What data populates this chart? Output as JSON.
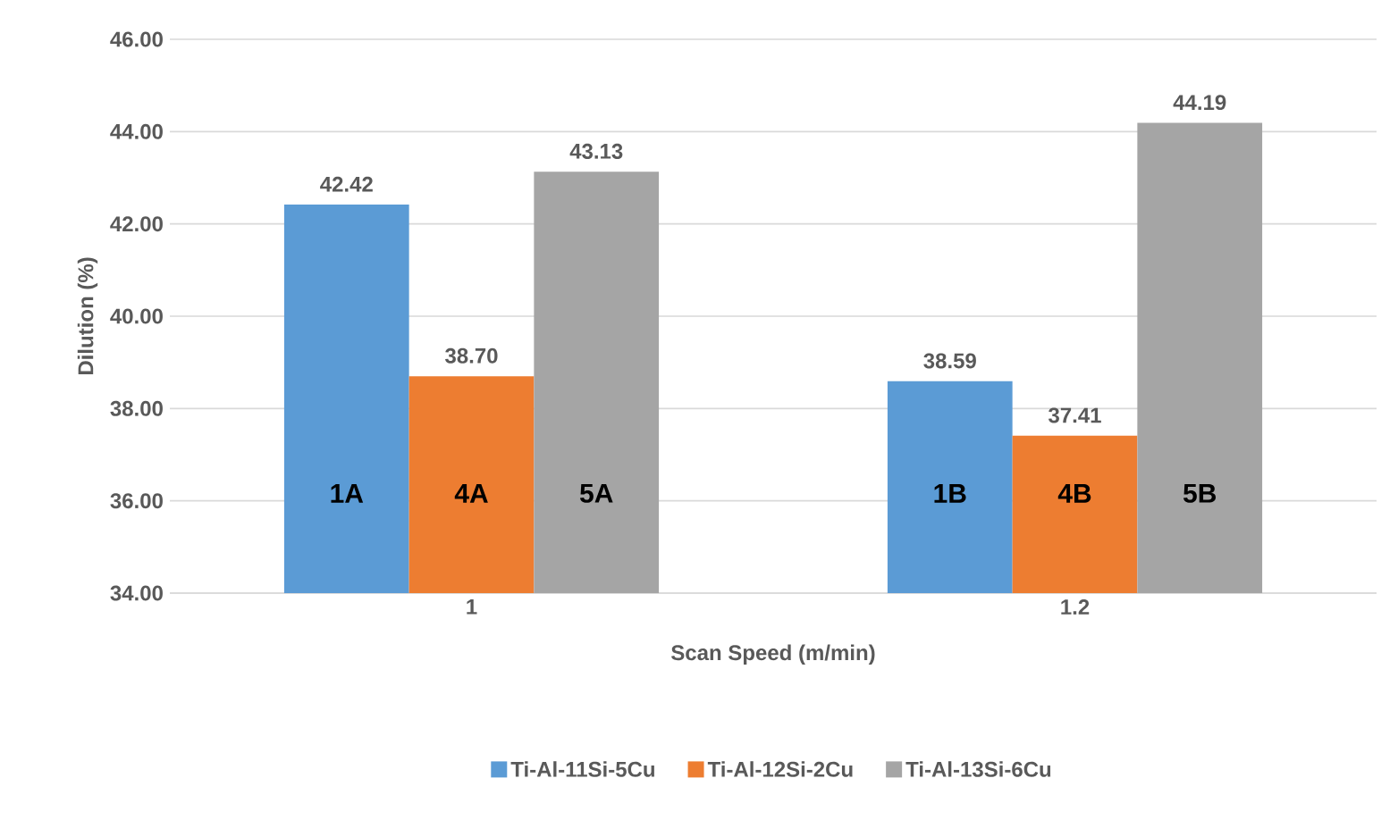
{
  "chart_data": {
    "type": "bar",
    "xlabel": "Scan Speed (m/min)",
    "ylabel": "Dilution (%)",
    "categories": [
      "1",
      "1.2"
    ],
    "series": [
      {
        "name": "Ti-Al-11Si-5Cu",
        "color": "#5b9bd5",
        "values": [
          42.42,
          38.59
        ],
        "value_labels": [
          "42.42",
          "38.59"
        ]
      },
      {
        "name": "Ti-Al-12Si-2Cu",
        "color": "#ed7d31",
        "values": [
          38.7,
          37.41
        ],
        "value_labels": [
          "38.70",
          "37.41"
        ]
      },
      {
        "name": "Ti-Al-13Si-6Cu",
        "color": "#a5a5a5",
        "values": [
          43.13,
          44.19
        ],
        "value_labels": [
          "43.13",
          "44.19"
        ]
      }
    ],
    "ylim": [
      34,
      46
    ],
    "yticks": [
      {
        "value": 34,
        "label": "34.00"
      },
      {
        "value": 36,
        "label": "36.00"
      },
      {
        "value": 38,
        "label": "38.00"
      },
      {
        "value": 40,
        "label": "40.00"
      },
      {
        "value": 42,
        "label": "42.00"
      },
      {
        "value": 44,
        "label": "44.00"
      },
      {
        "value": 46,
        "label": "46.00"
      }
    ],
    "grid": "y",
    "legend": "bottom",
    "annotations": [
      "1A",
      "4A",
      "5A",
      "1B",
      "4B",
      "5B"
    ]
  }
}
